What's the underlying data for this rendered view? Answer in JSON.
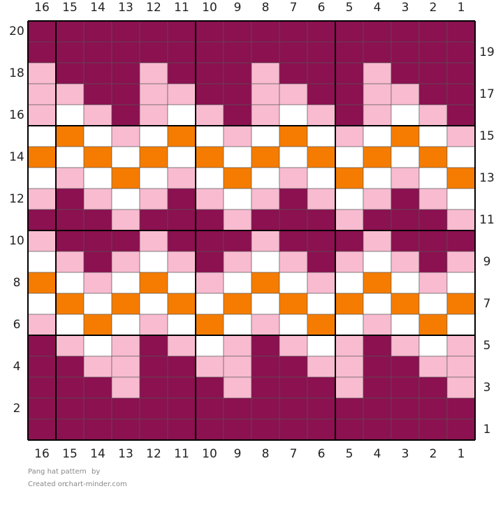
{
  "pattern": {
    "title": "Pang hat pattern",
    "by": "by",
    "created_on": "Created on",
    "site": "chart-minder.com",
    "column_labels": [
      16,
      15,
      14,
      13,
      12,
      11,
      10,
      9,
      8,
      7,
      6,
      5,
      4,
      3,
      2,
      1
    ],
    "row_labels": [
      20,
      19,
      18,
      17,
      16,
      15,
      14,
      13,
      12,
      11,
      10,
      9,
      8,
      7,
      6,
      5,
      4,
      3,
      2,
      1
    ],
    "rows": [
      [
        "#8b1150",
        "#8b1150",
        "#8b1150",
        "#8b1150",
        "#8b1150",
        "#8b1150",
        "#8b1150",
        "#8b1150",
        "#8b1150",
        "#8b1150",
        "#8b1150",
        "#8b1150",
        "#8b1150",
        "#8b1150",
        "#8b1150",
        "#8b1150"
      ],
      [
        "#8b1150",
        "#8b1150",
        "#8b1150",
        "#8b1150",
        "#8b1150",
        "#8b1150",
        "#8b1150",
        "#8b1150",
        "#8b1150",
        "#8b1150",
        "#8b1150",
        "#8b1150",
        "#8b1150",
        "#8b1150",
        "#8b1150",
        "#8b1150"
      ],
      [
        "#f8bbd0",
        "#8b1150",
        "#8b1150",
        "#8b1150",
        "#f8bbd0",
        "#8b1150",
        "#8b1150",
        "#8b1150",
        "#f8bbd0",
        "#8b1150",
        "#8b1150",
        "#8b1150",
        "#f8bbd0",
        "#8b1150",
        "#8b1150",
        "#8b1150"
      ],
      [
        "#f8bbd0",
        "#f8bbd0",
        "#8b1150",
        "#8b1150",
        "#f8bbd0",
        "#f8bbd0",
        "#8b1150",
        "#8b1150",
        "#f8bbd0",
        "#f8bbd0",
        "#8b1150",
        "#8b1150",
        "#f8bbd0",
        "#f8bbd0",
        "#8b1150",
        "#8b1150"
      ],
      [
        "#f8bbd0",
        "#ffffff",
        "#f8bbd0",
        "#8b1150",
        "#f8bbd0",
        "#ffffff",
        "#f8bbd0",
        "#8b1150",
        "#f8bbd0",
        "#ffffff",
        "#f8bbd0",
        "#8b1150",
        "#f8bbd0",
        "#ffffff",
        "#f8bbd0",
        "#8b1150"
      ],
      [
        "#ffffff",
        "#f57c00",
        "#ffffff",
        "#f8bbd0",
        "#ffffff",
        "#f57c00",
        "#ffffff",
        "#f8bbd0",
        "#ffffff",
        "#f57c00",
        "#ffffff",
        "#f8bbd0",
        "#ffffff",
        "#f57c00",
        "#ffffff",
        "#f8bbd0"
      ],
      [
        "#f57c00",
        "#ffffff",
        "#f57c00",
        "#ffffff",
        "#f57c00",
        "#ffffff",
        "#f57c00",
        "#ffffff",
        "#f57c00",
        "#ffffff",
        "#f57c00",
        "#ffffff",
        "#f57c00",
        "#ffffff",
        "#f57c00",
        "#ffffff"
      ],
      [
        "#ffffff",
        "#f8bbd0",
        "#ffffff",
        "#f57c00",
        "#ffffff",
        "#f8bbd0",
        "#ffffff",
        "#f57c00",
        "#ffffff",
        "#f8bbd0",
        "#ffffff",
        "#f57c00",
        "#ffffff",
        "#f8bbd0",
        "#ffffff",
        "#f57c00"
      ],
      [
        "#f8bbd0",
        "#8b1150",
        "#f8bbd0",
        "#ffffff",
        "#f8bbd0",
        "#8b1150",
        "#f8bbd0",
        "#ffffff",
        "#f8bbd0",
        "#8b1150",
        "#f8bbd0",
        "#ffffff",
        "#f8bbd0",
        "#8b1150",
        "#f8bbd0",
        "#ffffff"
      ],
      [
        "#8b1150",
        "#8b1150",
        "#8b1150",
        "#f8bbd0",
        "#8b1150",
        "#8b1150",
        "#8b1150",
        "#f8bbd0",
        "#8b1150",
        "#8b1150",
        "#8b1150",
        "#f8bbd0",
        "#8b1150",
        "#8b1150",
        "#8b1150",
        "#f8bbd0"
      ],
      [
        "#f8bbd0",
        "#8b1150",
        "#8b1150",
        "#8b1150",
        "#f8bbd0",
        "#8b1150",
        "#8b1150",
        "#8b1150",
        "#f8bbd0",
        "#8b1150",
        "#8b1150",
        "#8b1150",
        "#f8bbd0",
        "#8b1150",
        "#8b1150",
        "#8b1150"
      ],
      [
        "#ffffff",
        "#f8bbd0",
        "#8b1150",
        "#f8bbd0",
        "#ffffff",
        "#f8bbd0",
        "#8b1150",
        "#f8bbd0",
        "#ffffff",
        "#f8bbd0",
        "#8b1150",
        "#f8bbd0",
        "#ffffff",
        "#f8bbd0",
        "#8b1150",
        "#f8bbd0"
      ],
      [
        "#f57c00",
        "#ffffff",
        "#f8bbd0",
        "#ffffff",
        "#f57c00",
        "#ffffff",
        "#f8bbd0",
        "#ffffff",
        "#f57c00",
        "#ffffff",
        "#f8bbd0",
        "#ffffff",
        "#f57c00",
        "#ffffff",
        "#f8bbd0",
        "#ffffff"
      ],
      [
        "#ffffff",
        "#f57c00",
        "#ffffff",
        "#f57c00",
        "#ffffff",
        "#f57c00",
        "#ffffff",
        "#f57c00",
        "#ffffff",
        "#f57c00",
        "#ffffff",
        "#f57c00",
        "#ffffff",
        "#f57c00",
        "#ffffff",
        "#f57c00"
      ],
      [
        "#f8bbd0",
        "#ffffff",
        "#f57c00",
        "#ffffff",
        "#f8bbd0",
        "#ffffff",
        "#f57c00",
        "#ffffff",
        "#f8bbd0",
        "#ffffff",
        "#f57c00",
        "#ffffff",
        "#f8bbd0",
        "#ffffff",
        "#f57c00",
        "#ffffff"
      ],
      [
        "#8b1150",
        "#f8bbd0",
        "#ffffff",
        "#f8bbd0",
        "#8b1150",
        "#f8bbd0",
        "#ffffff",
        "#f8bbd0",
        "#8b1150",
        "#f8bbd0",
        "#ffffff",
        "#f8bbd0",
        "#8b1150",
        "#f8bbd0",
        "#ffffff",
        "#f8bbd0"
      ],
      [
        "#8b1150",
        "#8b1150",
        "#f8bbd0",
        "#f8bbd0",
        "#8b1150",
        "#8b1150",
        "#f8bbd0",
        "#f8bbd0",
        "#8b1150",
        "#8b1150",
        "#f8bbd0",
        "#f8bbd0",
        "#8b1150",
        "#8b1150",
        "#f8bbd0",
        "#f8bbd0"
      ],
      [
        "#8b1150",
        "#8b1150",
        "#8b1150",
        "#f8bbd0",
        "#8b1150",
        "#8b1150",
        "#8b1150",
        "#f8bbd0",
        "#8b1150",
        "#8b1150",
        "#8b1150",
        "#f8bbd0",
        "#8b1150",
        "#8b1150",
        "#8b1150",
        "#f8bbd0"
      ],
      [
        "#8b1150",
        "#8b1150",
        "#8b1150",
        "#8b1150",
        "#8b1150",
        "#8b1150",
        "#8b1150",
        "#8b1150",
        "#8b1150",
        "#8b1150",
        "#8b1150",
        "#8b1150",
        "#8b1150",
        "#8b1150",
        "#8b1150",
        "#8b1150"
      ],
      [
        "#8b1150",
        "#8b1150",
        "#8b1150",
        "#8b1150",
        "#8b1150",
        "#8b1150",
        "#8b1150",
        "#8b1150",
        "#8b1150",
        "#8b1150",
        "#8b1150",
        "#8b1150",
        "#8b1150",
        "#8b1150",
        "#8b1150",
        "#8b1150"
      ]
    ]
  }
}
